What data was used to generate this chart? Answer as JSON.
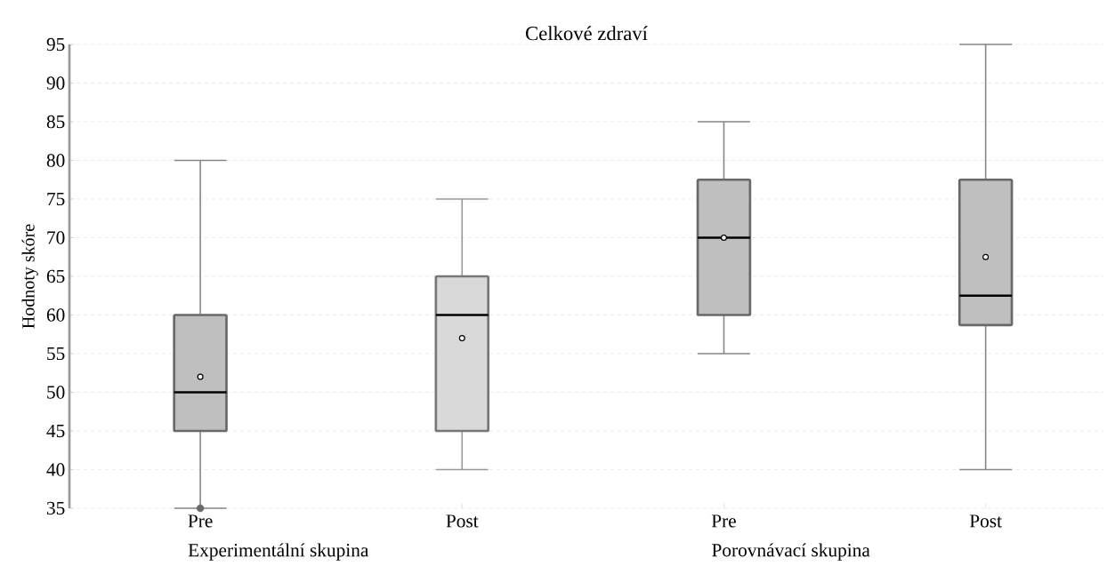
{
  "chart_data": {
    "type": "box",
    "title": "Celkové zdraví",
    "ylabel": "Hodnoty skóre",
    "categories": [
      "Pre",
      "Post",
      "Pre",
      "Post"
    ],
    "boxes": [
      {
        "low": 35,
        "q1": 45,
        "median": 50,
        "q3": 60,
        "high": 80,
        "mean": 52,
        "outliers": [
          35
        ]
      },
      {
        "low": 40,
        "q1": 45,
        "median": 60,
        "q3": 65,
        "high": 75,
        "mean": 57
      },
      {
        "low": 55,
        "q1": 60,
        "median": 70,
        "q3": 77.5,
        "high": 85,
        "mean": 70
      },
      {
        "low": 40,
        "q1": 58.7,
        "median": 62.5,
        "q3": 77.5,
        "high": 95,
        "mean": 67.5
      }
    ],
    "colors": [
      "#bfbfbf",
      "#d9d9d9",
      "#bfbfbf",
      "#bfbfbf"
    ],
    "ylim": [
      35,
      95
    ],
    "yticks": [
      35,
      40,
      45,
      50,
      55,
      60,
      65,
      70,
      75,
      80,
      85,
      90,
      95
    ],
    "grid": "y",
    "annotations": [
      "Experimentální skupina",
      "Porovnávací skupina"
    ]
  }
}
